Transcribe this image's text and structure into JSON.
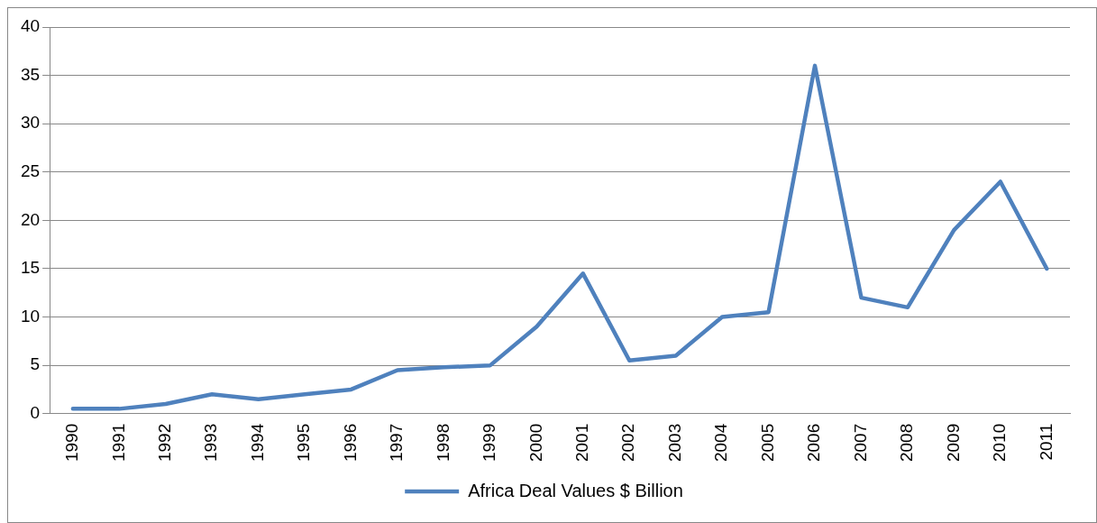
{
  "chart_data": {
    "type": "line",
    "categories": [
      "1990",
      "1991",
      "1992",
      "1993",
      "1994",
      "1995",
      "1996",
      "1997",
      "1998",
      "1999",
      "2000",
      "2001",
      "2002",
      "2003",
      "2004",
      "2005",
      "2006",
      "2007",
      "2008",
      "2009",
      "2010",
      "2011"
    ],
    "series": [
      {
        "name": "Africa Deal Values $ Billion",
        "color": "#4f81bd",
        "values": [
          0.5,
          0.5,
          1,
          2,
          1.5,
          2,
          2.5,
          4.5,
          4.8,
          5,
          9,
          14.5,
          5.5,
          6,
          10,
          10.5,
          36,
          12,
          11,
          19,
          24,
          15
        ]
      }
    ],
    "ylim": [
      0,
      40
    ],
    "yticks": [
      0,
      5,
      10,
      15,
      20,
      25,
      30,
      35,
      40
    ],
    "grid": "y",
    "legend": "bottom",
    "marker": "none",
    "line_style": "solid"
  }
}
